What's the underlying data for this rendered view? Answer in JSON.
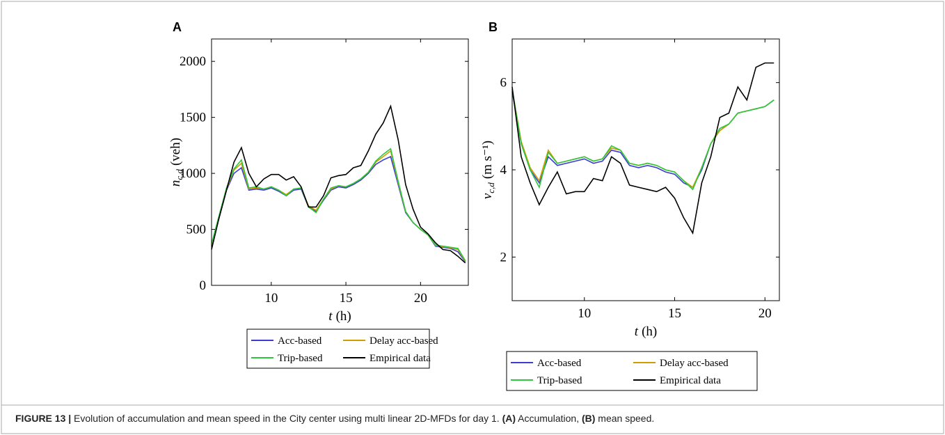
{
  "chart_data": [
    {
      "type": "line",
      "title": "A",
      "xlabel": {
        "symbol": "t",
        "unit": "(h)"
      },
      "ylabel": {
        "symbol": "n",
        "subscript": "c,d",
        "unit": "(veh)"
      },
      "x": [
        6,
        6.5,
        7,
        7.5,
        8,
        8.5,
        9,
        9.5,
        10,
        10.5,
        11,
        11.5,
        12,
        12.5,
        13,
        13.5,
        14,
        14.5,
        15,
        15.5,
        16,
        16.5,
        17,
        17.5,
        18,
        18.5,
        19,
        19.5,
        20,
        20.5,
        21,
        21.5,
        22,
        22.5,
        23
      ],
      "xlim": [
        6,
        23.2
      ],
      "xticks": [
        10,
        15,
        20
      ],
      "ylim": [
        0,
        2200
      ],
      "yticks": [
        0,
        500,
        1000,
        1500,
        2000
      ],
      "series": [
        {
          "name": "Acc-based",
          "color": "#3c3cd2",
          "values": [
            350,
            600,
            850,
            1000,
            1050,
            850,
            860,
            850,
            870,
            840,
            800,
            850,
            860,
            700,
            660,
            760,
            850,
            880,
            870,
            900,
            940,
            1000,
            1080,
            1120,
            1150,
            900,
            650,
            560,
            500,
            450,
            350,
            340,
            330,
            300,
            210
          ]
        },
        {
          "name": "Delay acc-based",
          "color": "#d49a00",
          "values": [
            360,
            610,
            860,
            1030,
            1090,
            860,
            870,
            860,
            880,
            850,
            810,
            860,
            870,
            710,
            670,
            770,
            860,
            890,
            880,
            910,
            950,
            1010,
            1100,
            1150,
            1200,
            920,
            660,
            560,
            500,
            450,
            355,
            345,
            335,
            320,
            215
          ]
        },
        {
          "name": "Trip-based",
          "color": "#2bc83c",
          "values": [
            370,
            620,
            870,
            1040,
            1120,
            870,
            880,
            860,
            880,
            850,
            800,
            860,
            870,
            700,
            650,
            770,
            870,
            890,
            880,
            910,
            950,
            1010,
            1110,
            1170,
            1220,
            930,
            660,
            560,
            500,
            450,
            360,
            350,
            340,
            330,
            220
          ]
        },
        {
          "name": "Empirical data",
          "color": "#000000",
          "values": [
            320,
            600,
            850,
            1100,
            1230,
            1000,
            880,
            950,
            990,
            990,
            940,
            970,
            880,
            700,
            700,
            800,
            960,
            980,
            990,
            1050,
            1070,
            1200,
            1350,
            1450,
            1600,
            1300,
            900,
            680,
            520,
            460,
            380,
            320,
            310,
            260,
            200
          ]
        }
      ]
    },
    {
      "type": "line",
      "title": "B",
      "xlabel": {
        "symbol": "t",
        "unit": "(h)"
      },
      "ylabel": {
        "symbol": "v",
        "subscript": "c,d",
        "unit": "(m s⁻¹)"
      },
      "x": [
        6,
        6.5,
        7,
        7.5,
        8,
        8.5,
        9,
        9.5,
        10,
        10.5,
        11,
        11.5,
        12,
        12.5,
        13,
        13.5,
        14,
        14.5,
        15,
        15.5,
        16,
        16.5,
        17,
        17.5,
        18,
        18.5,
        19,
        19.5,
        20,
        20.5
      ],
      "xlim": [
        6,
        20.8
      ],
      "xticks": [
        10,
        15,
        20
      ],
      "ylim": [
        1,
        7
      ],
      "yticks": [
        2,
        4,
        6
      ],
      "series": [
        {
          "name": "Acc-based",
          "color": "#3c3cd2",
          "values": [
            5.8,
            4.6,
            4.0,
            3.7,
            4.3,
            4.1,
            4.15,
            4.2,
            4.25,
            4.15,
            4.2,
            4.45,
            4.4,
            4.1,
            4.05,
            4.1,
            4.05,
            3.95,
            3.9,
            3.7,
            3.6,
            4.0,
            4.6,
            4.9,
            5.05,
            5.3,
            5.35,
            5.4,
            5.45,
            5.6
          ]
        },
        {
          "name": "Delay acc-based",
          "color": "#d49a00",
          "values": [
            5.85,
            4.65,
            4.05,
            3.75,
            4.45,
            4.15,
            4.2,
            4.25,
            4.3,
            4.2,
            4.25,
            4.5,
            4.45,
            4.15,
            4.1,
            4.15,
            4.1,
            4.0,
            3.95,
            3.75,
            3.6,
            4.05,
            4.6,
            4.9,
            5.05,
            5.3,
            5.35,
            5.4,
            5.45,
            5.6
          ]
        },
        {
          "name": "Trip-based",
          "color": "#2bc83c",
          "values": [
            5.85,
            4.6,
            4.0,
            3.6,
            4.4,
            4.15,
            4.2,
            4.25,
            4.3,
            4.2,
            4.25,
            4.55,
            4.45,
            4.15,
            4.1,
            4.15,
            4.1,
            4.0,
            3.95,
            3.75,
            3.55,
            4.05,
            4.6,
            4.95,
            5.05,
            5.3,
            5.35,
            5.4,
            5.45,
            5.6
          ]
        },
        {
          "name": "Empirical data",
          "color": "#000000",
          "values": [
            5.9,
            4.3,
            3.7,
            3.2,
            3.6,
            3.95,
            3.45,
            3.5,
            3.5,
            3.8,
            3.75,
            4.3,
            4.15,
            3.65,
            3.6,
            3.55,
            3.5,
            3.6,
            3.35,
            2.9,
            2.55,
            3.7,
            4.3,
            5.2,
            5.3,
            5.9,
            5.6,
            6.35,
            6.45,
            6.45
          ]
        }
      ]
    }
  ],
  "caption": {
    "parts": [
      {
        "text": "FIGURE 13 |",
        "bold": true
      },
      {
        "text": " Evolution of accumulation and mean speed in the City center using multi linear 2D-MFDs for day 1. ",
        "bold": false
      },
      {
        "text": "(A)",
        "bold": true
      },
      {
        "text": " Accumulation, ",
        "bold": false
      },
      {
        "text": "(B)",
        "bold": true
      },
      {
        "text": " mean speed.",
        "bold": false
      }
    ]
  }
}
